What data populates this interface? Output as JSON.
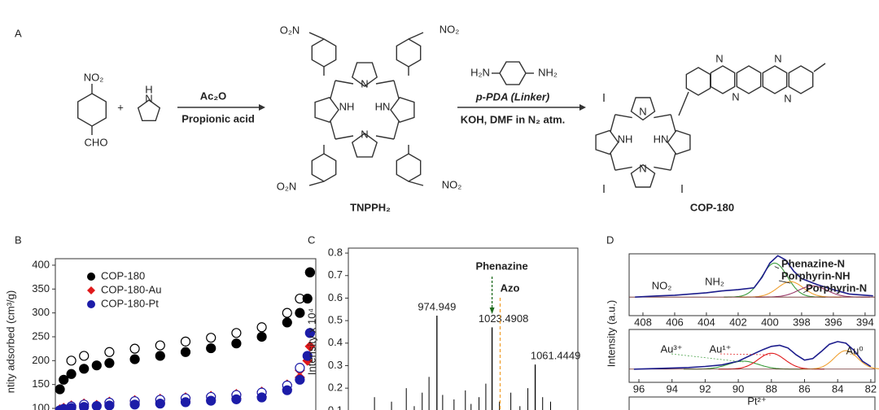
{
  "scheme": {
    "panel_label": "A",
    "reactant_1": {
      "substituent_top": "NO₂",
      "substituent_bottom": "CHO"
    },
    "plus": "+",
    "reactant_2": {
      "h": "H",
      "n": "N"
    },
    "step_1": {
      "reagent": "Ac₂O",
      "condition": "Propionic acid"
    },
    "intermediate": {
      "substituents": [
        "O₂N",
        "NO₂",
        "O₂N",
        "NO₂"
      ],
      "atoms": [
        "N",
        "NH",
        "HN",
        "N"
      ],
      "name": "TNPPH₂"
    },
    "step_2": {
      "linker_left": "H₂N",
      "linker_right": "NH₂",
      "reagent": "p-PDA (Linker)",
      "condition": "KOH, DMF in N₂ atm."
    },
    "product": {
      "atoms": [
        "N",
        "NH",
        "HN",
        "N",
        "N",
        "N",
        "N",
        "N"
      ],
      "name": "COP-180"
    }
  },
  "chart_data": [
    {
      "type": "scatter",
      "panel_label": "B",
      "y_label": "ntity adsorbed (cm³/g)",
      "xlim": [
        0,
        1
      ],
      "ylim": [
        96.6,
        413.6
      ],
      "yticks": [
        100,
        150,
        200,
        250,
        300,
        350,
        400
      ],
      "x": [
        0.005,
        0.02,
        0.05,
        0.1,
        0.15,
        0.2,
        0.3,
        0.4,
        0.5,
        0.6,
        0.7,
        0.8,
        0.9,
        0.95,
        0.98,
        0.99
      ],
      "desorption_x": [
        0.05,
        0.1,
        0.2,
        0.3,
        0.4,
        0.5,
        0.6,
        0.7,
        0.8,
        0.9,
        0.95,
        0.99
      ],
      "series": [
        {
          "name": "COP-180",
          "color": "#000000",
          "marker": "circle",
          "values": [
            140,
            160,
            172,
            183,
            190,
            195,
            203,
            210,
            218,
            226,
            236,
            250,
            280,
            300,
            330,
            385
          ],
          "desorption": [
            200,
            210,
            218,
            225,
            232,
            240,
            248,
            258,
            270,
            300,
            330,
            385
          ]
        },
        {
          "name": "COP-180-Au",
          "color": "#e0191b",
          "marker": "diamond",
          "values": [
            98,
            101,
            103,
            105,
            107,
            108,
            110,
            112,
            115,
            118,
            121,
            125,
            140,
            165,
            200,
            230
          ],
          "desorption": [
            106,
            110,
            114,
            117,
            120,
            123,
            126,
            130,
            135,
            150,
            180,
            230
          ]
        },
        {
          "name": "COP-180-Pt",
          "color": "#1c1ca8",
          "marker": "circle",
          "values": [
            96,
            99,
            101,
            103,
            105,
            106,
            108,
            110,
            113,
            116,
            119,
            123,
            138,
            160,
            210,
            258
          ],
          "desorption": [
            104,
            108,
            112,
            115,
            118,
            121,
            124,
            128,
            133,
            148,
            185,
            258
          ]
        }
      ]
    },
    {
      "type": "stem",
      "panel_label": "C",
      "y_label": "Intensity x 10⁴",
      "xlim": [
        897,
        1099
      ],
      "ylim": [
        0.103,
        0.822
      ],
      "yticks": [
        0.1,
        0.2,
        0.3,
        0.4,
        0.5,
        0.6,
        0.7,
        0.8
      ],
      "color": "#000000",
      "x": [
        920,
        935,
        948,
        955,
        962,
        968,
        980,
        990,
        1000,
        1005,
        1012,
        1018,
        1030,
        1040,
        1048,
        1055,
        1068,
        1075
      ],
      "values": [
        0.16,
        0.14,
        0.2,
        0.12,
        0.18,
        0.25,
        0.17,
        0.15,
        0.19,
        0.13,
        0.16,
        0.22,
        0.14,
        0.18,
        0.12,
        0.2,
        0.16,
        0.14
      ],
      "labeled_peaks": {
        "x": [
          974.949,
          1023.4908,
          1061.4449
        ],
        "values": [
          0.522,
          0.47,
          0.305
        ]
      },
      "annotations": [
        {
          "text": "Phenazine",
          "x": 1023.4908,
          "color": "#1e6b1e"
        },
        {
          "text": "Azo",
          "x": 1030.6,
          "color": "#f0a030"
        }
      ]
    },
    {
      "type": "xps",
      "panel_label": "D",
      "y_label": "Intensity (a.u.)",
      "color": "#1c1c8c",
      "ylim": [
        0,
        1
      ],
      "panels": [
        {
          "xlim": [
            408.87,
            393.38
          ],
          "xticks": [
            408,
            406,
            404,
            402,
            400,
            398,
            396,
            394
          ],
          "baseline": 0.3,
          "x": [
            408.5,
            407,
            406,
            405,
            404,
            403,
            402,
            401,
            400.5,
            400,
            399.5,
            399,
            398.5,
            398,
            397.5,
            397,
            396.5,
            396,
            395,
            394,
            393.5
          ],
          "values": [
            0.3,
            0.32,
            0.33,
            0.35,
            0.37,
            0.4,
            0.42,
            0.45,
            0.62,
            0.85,
            0.97,
            0.9,
            0.72,
            0.6,
            0.55,
            0.5,
            0.46,
            0.42,
            0.35,
            0.33,
            0.32
          ],
          "components": [
            {
              "name": "Phenazine-N",
              "color": "#3a9a3a",
              "center": 399.7,
              "height": 0.55,
              "width": 0.8
            },
            {
              "name": "Porphyrin-NH",
              "color": "#f0a030",
              "center": 398.7,
              "height": 0.25,
              "width": 0.8
            },
            {
              "name": "Porphyrin-N",
              "color": "#9a3a6a",
              "center": 397.3,
              "height": 0.18,
              "width": 0.9
            }
          ],
          "annotations": [
            {
              "text": "NO₂",
              "color": "#000000"
            },
            {
              "text": "NH₂",
              "color": "#000000"
            }
          ]
        },
        {
          "xlim": [
            96.59,
            81.75
          ],
          "xticks": [
            96,
            94,
            92,
            90,
            88,
            86,
            84,
            82
          ],
          "baseline": 0.25,
          "x": [
            96.3,
            95,
            94,
            93,
            92,
            91,
            90,
            89,
            88.5,
            88,
            87.5,
            87,
            86.5,
            86,
            85.5,
            85,
            84.5,
            84,
            83.5,
            83,
            82.5,
            82
          ],
          "values": [
            0.25,
            0.26,
            0.27,
            0.28,
            0.3,
            0.33,
            0.4,
            0.55,
            0.62,
            0.68,
            0.7,
            0.65,
            0.52,
            0.42,
            0.45,
            0.58,
            0.72,
            0.77,
            0.74,
            0.6,
            0.4,
            0.3
          ],
          "components": [
            {
              "name": "Au³⁺",
              "color": "#3a9a3a",
              "center": 89.7,
              "height": 0.15,
              "width": 0.9
            },
            {
              "name": "Au¹⁺",
              "color": "#e0191b",
              "center": 88,
              "height": 0.3,
              "width": 0.8
            },
            {
              "name": "Au⁰",
              "color": "#f0a030",
              "center": 83.5,
              "height": 0.35,
              "width": 0.7
            }
          ]
        },
        {
          "annotations": [
            {
              "text": "Pt²⁺",
              "color": "#000000"
            }
          ]
        }
      ]
    }
  ]
}
